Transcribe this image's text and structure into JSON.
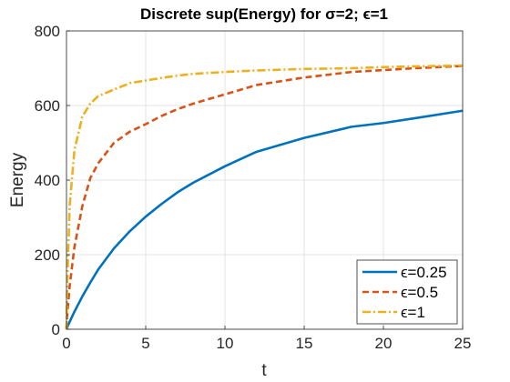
{
  "chart_data": {
    "type": "line",
    "title": "Discrete sup(Energy) for σ=2; ϵ=1",
    "xlabel": "t",
    "ylabel": "Energy",
    "xlim": [
      0,
      25
    ],
    "ylim": [
      0,
      800
    ],
    "xticks": [
      "0",
      "5",
      "10",
      "15",
      "20",
      "25"
    ],
    "yticks": [
      "0",
      "200",
      "400",
      "600",
      "800"
    ],
    "grid": true,
    "legend_position": "bottom-right",
    "x": [
      0,
      0.05,
      0.2,
      0.5,
      1,
      1.5,
      2,
      3,
      4,
      5,
      6,
      7,
      8,
      10,
      12,
      15,
      18,
      20,
      22,
      25
    ],
    "series": [
      {
        "name": "ϵ=0.25",
        "color": "#0072BD",
        "dash": "solid",
        "values": [
          0,
          6,
          20,
          47,
          88,
          125,
          160,
          217,
          263,
          302,
          336,
          367,
          393,
          437,
          476,
          513,
          543,
          553,
          566,
          586
        ]
      },
      {
        "name": "ϵ=0.5",
        "color": "#D95319",
        "dash": "dashed",
        "values": [
          0,
          40,
          115,
          220,
          330,
          405,
          445,
          500,
          530,
          550,
          572,
          590,
          605,
          630,
          655,
          675,
          690,
          695,
          700,
          706
        ]
      },
      {
        "name": "ϵ=1",
        "color": "#EDB120",
        "dash": "dashdot",
        "values": [
          0,
          130,
          330,
          480,
          570,
          605,
          625,
          643,
          660,
          667,
          674,
          680,
          685,
          690,
          694,
          698,
          700,
          703,
          705,
          707
        ]
      }
    ]
  }
}
